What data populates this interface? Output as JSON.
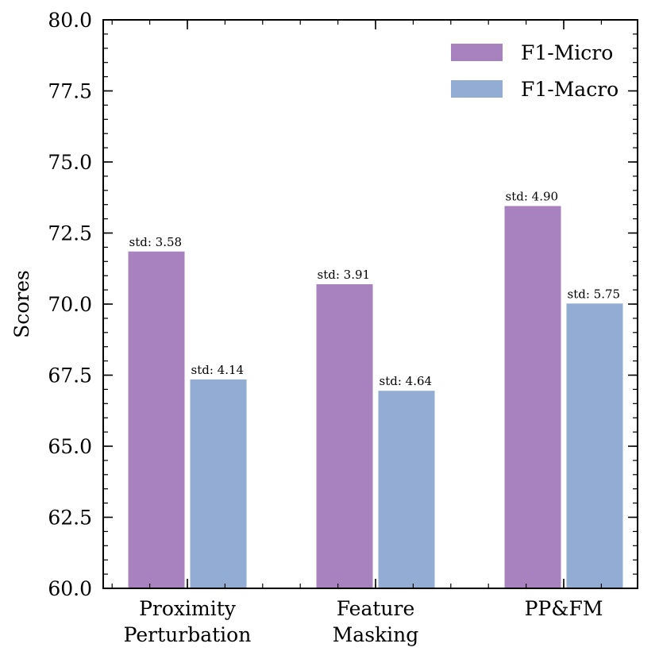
{
  "chart_data": {
    "type": "bar",
    "title": "",
    "xlabel": "",
    "ylabel": "Scores",
    "ylim": [
      60.0,
      80.0
    ],
    "yticks": [
      "60.0",
      "62.5",
      "65.0",
      "67.5",
      "70.0",
      "72.5",
      "75.0",
      "77.5",
      "80.0"
    ],
    "categories": [
      [
        "Proximity",
        "Perturbation"
      ],
      [
        "Feature",
        "Masking"
      ],
      [
        "PP&FM"
      ]
    ],
    "series": [
      {
        "name": "F1-Micro",
        "color": "#a882bf",
        "values": [
          71.85,
          70.7,
          73.45
        ],
        "std_labels": [
          "std: 3.58",
          "std: 3.91",
          "std: 4.90"
        ]
      },
      {
        "name": "F1-Macro",
        "color": "#93acd3",
        "values": [
          67.35,
          66.95,
          70.02
        ],
        "std_labels": [
          "std: 4.14",
          "std: 4.64",
          "std: 5.75"
        ]
      }
    ],
    "legend_position": "top-right",
    "grid": false
  }
}
